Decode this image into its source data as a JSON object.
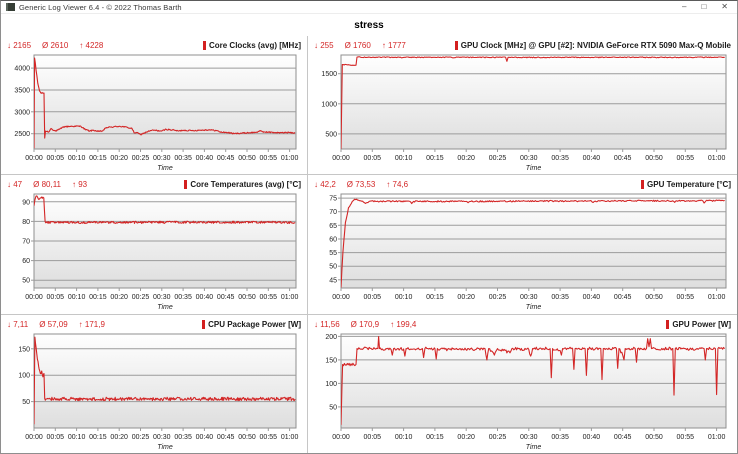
{
  "window": {
    "title": "Generic Log Viewer 6.4 - © 2022 Thomas Barth",
    "controls": {
      "minimize": "–",
      "maximize": "□",
      "close": "✕"
    }
  },
  "page_title": "stress",
  "colors": {
    "accent_red": "#d32626",
    "grid_line": "#9b9b9b",
    "plot_border": "#8f8f8f",
    "plot_bg_top": "#ffffff",
    "plot_bg_bottom": "#dedede",
    "axis_text": "#222222"
  },
  "chart_data": [
    {
      "type": "line",
      "title": "Core Clocks (avg) [MHz]",
      "stats": {
        "min": "↓ 2165",
        "avg": "Ø 2610",
        "max": "↑ 4228"
      },
      "xlabel": "Time",
      "x_ticks": [
        "00:00",
        "00:05",
        "00:10",
        "00:15",
        "00:20",
        "00:25",
        "00:30",
        "00:35",
        "00:40",
        "00:45",
        "00:50",
        "00:55",
        "01:00"
      ],
      "x_tick_step_min": 5,
      "xlim": [
        0,
        61.5
      ],
      "ylim": [
        2150,
        4300
      ],
      "yticks": [
        2500,
        3000,
        3500,
        4000
      ],
      "jitter": 14,
      "points": [
        [
          0,
          2165
        ],
        [
          0.15,
          4228
        ],
        [
          0.5,
          3950
        ],
        [
          0.9,
          3650
        ],
        [
          1.3,
          3480
        ],
        [
          1.6,
          3430
        ],
        [
          2.35,
          3430
        ],
        [
          2.5,
          2400
        ],
        [
          2.7,
          2560
        ],
        [
          3.5,
          2540
        ],
        [
          4,
          2620
        ],
        [
          5,
          2560
        ],
        [
          6,
          2600
        ],
        [
          7,
          2660
        ],
        [
          9,
          2670
        ],
        [
          11,
          2670
        ],
        [
          12,
          2600
        ],
        [
          13,
          2560
        ],
        [
          14,
          2580
        ],
        [
          15,
          2550
        ],
        [
          16,
          2560
        ],
        [
          17,
          2640
        ],
        [
          18,
          2650
        ],
        [
          20,
          2670
        ],
        [
          21,
          2660
        ],
        [
          22,
          2640
        ],
        [
          23,
          2620
        ],
        [
          23.5,
          2520
        ],
        [
          24,
          2530
        ],
        [
          25,
          2480
        ],
        [
          26,
          2520
        ],
        [
          27,
          2560
        ],
        [
          28,
          2580
        ],
        [
          30,
          2560
        ],
        [
          31,
          2600
        ],
        [
          33,
          2580
        ],
        [
          34,
          2560
        ],
        [
          35,
          2580
        ],
        [
          37,
          2570
        ],
        [
          39,
          2580
        ],
        [
          41,
          2590
        ],
        [
          43,
          2570
        ],
        [
          43.5,
          2540
        ],
        [
          45,
          2530
        ],
        [
          46,
          2520
        ],
        [
          47,
          2500
        ],
        [
          48,
          2510
        ],
        [
          50,
          2520
        ],
        [
          52,
          2530
        ],
        [
          53,
          2560
        ],
        [
          54,
          2540
        ],
        [
          56,
          2530
        ],
        [
          58,
          2520
        ],
        [
          60,
          2530
        ],
        [
          61.3,
          2520
        ]
      ]
    },
    {
      "type": "line",
      "title": "GPU Clock [MHz] @ GPU [#2]: NVIDIA  GeForce RTX 5090 Max-Q Mobile",
      "stats": {
        "min": "↓ 255",
        "avg": "Ø 1760",
        "max": "↑ 1777"
      },
      "xlabel": "Time",
      "x_ticks": [
        "00:00",
        "00:05",
        "00:10",
        "00:15",
        "00:20",
        "00:25",
        "00:30",
        "00:35",
        "00:40",
        "00:45",
        "00:50",
        "00:55",
        "01:00"
      ],
      "x_tick_step_min": 5,
      "xlim": [
        0,
        61.5
      ],
      "ylim": [
        250,
        1810
      ],
      "yticks": [
        500,
        1000,
        1500
      ],
      "jitter": 7,
      "points": [
        [
          0,
          255
        ],
        [
          0.2,
          1650
        ],
        [
          1,
          1645
        ],
        [
          2.4,
          1640
        ],
        [
          2.55,
          1775
        ],
        [
          5,
          1772
        ],
        [
          10,
          1770
        ],
        [
          15,
          1772
        ],
        [
          20,
          1770
        ],
        [
          26.3,
          1772
        ],
        [
          26.5,
          1705
        ],
        [
          26.7,
          1772
        ],
        [
          30,
          1770
        ],
        [
          35,
          1772
        ],
        [
          40,
          1770
        ],
        [
          45,
          1772
        ],
        [
          50,
          1770
        ],
        [
          55,
          1772
        ],
        [
          60,
          1772
        ],
        [
          61.3,
          1775
        ]
      ]
    },
    {
      "type": "line",
      "title": "Core Temperatures (avg) [°C]",
      "stats": {
        "min": "↓ 47",
        "avg": "Ø 80,11",
        "max": "↑ 93"
      },
      "xlabel": "Time",
      "x_ticks": [
        "00:00",
        "00:05",
        "00:10",
        "00:15",
        "00:20",
        "00:25",
        "00:30",
        "00:35",
        "00:40",
        "00:45",
        "00:50",
        "00:55",
        "01:00"
      ],
      "x_tick_step_min": 5,
      "xlim": [
        0,
        61.5
      ],
      "ylim": [
        46,
        94
      ],
      "yticks": [
        50,
        60,
        70,
        80,
        90
      ],
      "jitter": 0.55,
      "points": [
        [
          0,
          88
        ],
        [
          0.2,
          91
        ],
        [
          0.5,
          93
        ],
        [
          1,
          91.5
        ],
        [
          1.5,
          92
        ],
        [
          2.3,
          92
        ],
        [
          2.6,
          80
        ],
        [
          3,
          79.5
        ],
        [
          20,
          79.5
        ],
        [
          40,
          79.6
        ],
        [
          61.3,
          79.5
        ]
      ]
    },
    {
      "type": "line",
      "title": "GPU Temperature [°C]",
      "stats": {
        "min": "↓ 42,2",
        "avg": "Ø 73,53",
        "max": "↑ 74,6"
      },
      "xlabel": "Time",
      "x_ticks": [
        "00:00",
        "00:05",
        "00:10",
        "00:15",
        "00:20",
        "00:25",
        "00:30",
        "00:35",
        "00:40",
        "00:45",
        "00:50",
        "00:55",
        "01:00"
      ],
      "x_tick_step_min": 5,
      "xlim": [
        0,
        61.5
      ],
      "ylim": [
        42,
        76.5
      ],
      "yticks": [
        45,
        50,
        55,
        60,
        65,
        70,
        75
      ],
      "jitter": 0.25,
      "points": [
        [
          0,
          42.2
        ],
        [
          0.3,
          55
        ],
        [
          0.7,
          66
        ],
        [
          1.2,
          71.5
        ],
        [
          1.8,
          73.8
        ],
        [
          2.2,
          74.6
        ],
        [
          3,
          74
        ],
        [
          4,
          73.2
        ],
        [
          4.5,
          73.8
        ],
        [
          11,
          73.8
        ],
        [
          11.3,
          73
        ],
        [
          11.6,
          73.8
        ],
        [
          20,
          73.8
        ],
        [
          20.3,
          73.3
        ],
        [
          20.6,
          73.8
        ],
        [
          30,
          73.9
        ],
        [
          40,
          73.9
        ],
        [
          40.3,
          73.4
        ],
        [
          40.6,
          73.9
        ],
        [
          48,
          74
        ],
        [
          53,
          74
        ],
        [
          53.3,
          73.4
        ],
        [
          53.6,
          74
        ],
        [
          57.8,
          74
        ],
        [
          58,
          73.2
        ],
        [
          58.3,
          74
        ],
        [
          61.3,
          74.2
        ]
      ]
    },
    {
      "type": "line",
      "title": "CPU Package Power [W]",
      "stats": {
        "min": "↓ 7,11",
        "avg": "Ø 57,09",
        "max": "↑ 171,9"
      },
      "xlabel": "Time",
      "x_ticks": [
        "00:00",
        "00:05",
        "00:10",
        "00:15",
        "00:20",
        "00:25",
        "00:30",
        "00:35",
        "00:40",
        "00:45",
        "00:50",
        "00:55",
        "01:00"
      ],
      "x_tick_step_min": 5,
      "xlim": [
        0,
        61.5
      ],
      "ylim": [
        0,
        178
      ],
      "yticks": [
        50,
        100,
        150
      ],
      "jitter": 3.2,
      "points": [
        [
          0,
          7.11
        ],
        [
          0.2,
          171.9
        ],
        [
          0.5,
          152
        ],
        [
          0.8,
          130
        ],
        [
          1.2,
          112
        ],
        [
          1.5,
          103
        ],
        [
          1.8,
          108
        ],
        [
          2.1,
          97
        ],
        [
          2.35,
          103
        ],
        [
          2.5,
          56
        ],
        [
          3,
          55
        ],
        [
          20,
          55
        ],
        [
          40,
          55
        ],
        [
          61.3,
          55
        ]
      ]
    },
    {
      "type": "line",
      "title": "GPU Power [W]",
      "stats": {
        "min": "↓ 11,56",
        "avg": "Ø 170,9",
        "max": "↑ 199,4"
      },
      "xlabel": "Time",
      "x_ticks": [
        "00:00",
        "00:05",
        "00:10",
        "00:15",
        "00:20",
        "00:25",
        "00:30",
        "00:35",
        "00:40",
        "00:45",
        "00:50",
        "00:55",
        "01:00"
      ],
      "x_tick_step_min": 5,
      "xlim": [
        0,
        61.5
      ],
      "ylim": [
        5,
        205
      ],
      "yticks": [
        50,
        100,
        150,
        200
      ],
      "jitter": 3,
      "points": [
        [
          0,
          11.56
        ],
        [
          0.25,
          140
        ],
        [
          2.4,
          140
        ],
        [
          2.55,
          174
        ],
        [
          5.9,
          174
        ],
        [
          6,
          199.4
        ],
        [
          6.15,
          174
        ],
        [
          8,
          172
        ],
        [
          8.2,
          160
        ],
        [
          8.4,
          174
        ],
        [
          10,
          173
        ],
        [
          10.2,
          158
        ],
        [
          10.4,
          174
        ],
        [
          13,
          174
        ],
        [
          13.2,
          155
        ],
        [
          13.4,
          174
        ],
        [
          15,
          174
        ],
        [
          15.2,
          152
        ],
        [
          15.4,
          174
        ],
        [
          17,
          172
        ],
        [
          18,
          174
        ],
        [
          21,
          172
        ],
        [
          23,
          174
        ],
        [
          23.3,
          150
        ],
        [
          23.6,
          174
        ],
        [
          24.5,
          160
        ],
        [
          25,
          174
        ],
        [
          27,
          165
        ],
        [
          27.3,
          174
        ],
        [
          30,
          172
        ],
        [
          30.3,
          158
        ],
        [
          30.6,
          174
        ],
        [
          33.4,
          174
        ],
        [
          33.6,
          112
        ],
        [
          33.8,
          174
        ],
        [
          35,
          170
        ],
        [
          35.2,
          160
        ],
        [
          35.4,
          174
        ],
        [
          37,
          174
        ],
        [
          37.2,
          130
        ],
        [
          37.4,
          174
        ],
        [
          39,
          174
        ],
        [
          39.2,
          117
        ],
        [
          39.4,
          174
        ],
        [
          41.5,
          174
        ],
        [
          41.7,
          108
        ],
        [
          41.9,
          174
        ],
        [
          44,
          174
        ],
        [
          44.2,
          132
        ],
        [
          44.4,
          174
        ],
        [
          45,
          160
        ],
        [
          45.2,
          150
        ],
        [
          45.4,
          174
        ],
        [
          47,
          174
        ],
        [
          47.2,
          145
        ],
        [
          47.4,
          174
        ],
        [
          48.8,
          174
        ],
        [
          49,
          195
        ],
        [
          49.2,
          178
        ],
        [
          49.4,
          195
        ],
        [
          49.6,
          174
        ],
        [
          53,
          174
        ],
        [
          53.2,
          75
        ],
        [
          53.4,
          174
        ],
        [
          56,
          172
        ],
        [
          58,
          174
        ],
        [
          58.2,
          150
        ],
        [
          58.4,
          174
        ],
        [
          59.8,
          174
        ],
        [
          60,
          76
        ],
        [
          60.2,
          174
        ],
        [
          61.3,
          174
        ]
      ]
    }
  ]
}
